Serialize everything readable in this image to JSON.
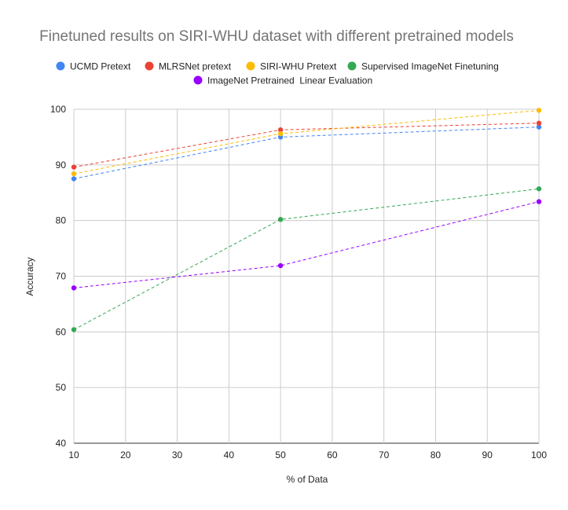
{
  "chart_data": {
    "type": "line",
    "title": "Finetuned results on SIRI-WHU dataset with different pretrained models",
    "xlabel": "% of Data",
    "ylabel": "Accuracy",
    "xlim": [
      10,
      100
    ],
    "ylim": [
      40,
      100
    ],
    "xticks": [
      10,
      20,
      30,
      40,
      50,
      60,
      70,
      80,
      90,
      100
    ],
    "yticks": [
      40,
      50,
      60,
      70,
      80,
      90,
      100
    ],
    "grid": true,
    "legend_position": "top",
    "x": [
      10,
      50,
      100
    ],
    "series": [
      {
        "name": "UCMD Pretext",
        "color": "#4285f4",
        "values": [
          87.5,
          95.0,
          96.8
        ]
      },
      {
        "name": "MLRSNet pretext",
        "color": "#ea4335",
        "values": [
          89.6,
          96.3,
          97.5
        ]
      },
      {
        "name": "SIRI-WHU Pretext",
        "color": "#fbbc04",
        "values": [
          88.4,
          95.6,
          99.8
        ]
      },
      {
        "name": "Supervised ImageNet Finetuning",
        "color": "#34a853",
        "values": [
          60.4,
          80.2,
          85.7
        ]
      },
      {
        "name": "ImageNet Pretrained  Linear Evaluation",
        "color": "#9900ff",
        "values": [
          67.9,
          71.9,
          83.4
        ]
      }
    ]
  }
}
